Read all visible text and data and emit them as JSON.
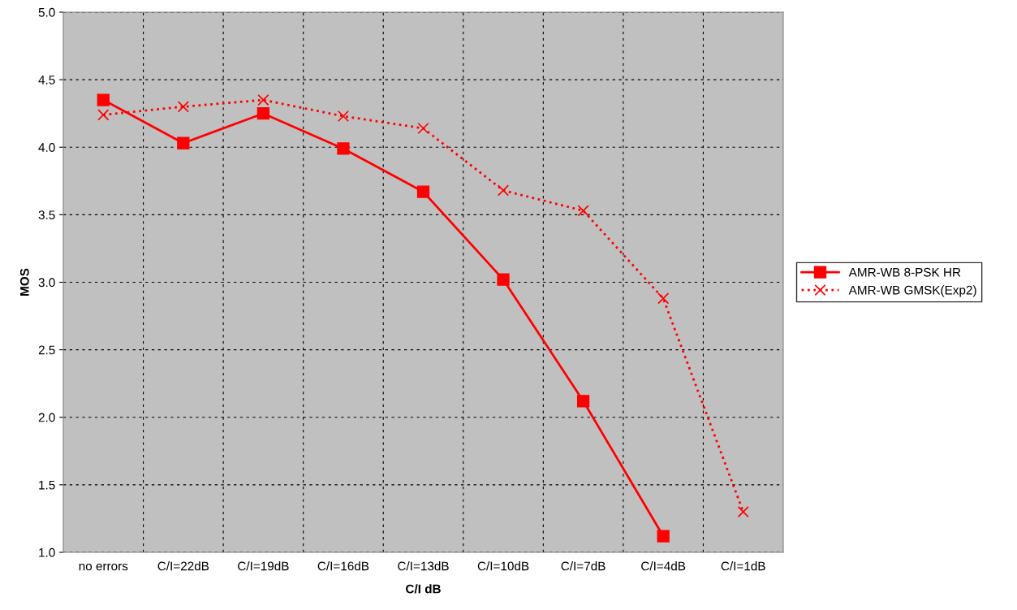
{
  "chart_data": {
    "type": "line",
    "xlabel": "C/I dB",
    "ylabel": "MOS",
    "categories": [
      "no errors",
      "C/I=22dB",
      "C/I=19dB",
      "C/I=16dB",
      "C/I=13dB",
      "C/I=10dB",
      "C/I=7dB",
      "C/I=4dB",
      "C/I=1dB"
    ],
    "series": [
      {
        "name": "AMR-WB 8-PSK HR",
        "color": "#ff0000",
        "marker": "square",
        "line_style": "solid",
        "values": [
          4.35,
          4.03,
          4.25,
          3.99,
          3.67,
          3.02,
          2.12,
          1.12,
          null
        ]
      },
      {
        "name": "AMR-WB GMSK(Exp2)",
        "color": "#ff0000",
        "marker": "cross",
        "line_style": "dotted",
        "values": [
          4.24,
          4.3,
          4.35,
          4.23,
          4.14,
          3.68,
          3.53,
          2.88,
          1.3
        ]
      }
    ],
    "ylim": [
      1.0,
      5.0
    ],
    "yticks": [
      {
        "value": 1.0,
        "label": "1.0"
      },
      {
        "value": 1.5,
        "label": "1.5"
      },
      {
        "value": 2.0,
        "label": "2.0"
      },
      {
        "value": 2.5,
        "label": "2.5"
      },
      {
        "value": 3.0,
        "label": "3.0"
      },
      {
        "value": 3.5,
        "label": "3.5"
      },
      {
        "value": 4.0,
        "label": "4.0"
      },
      {
        "value": 4.5,
        "label": "4.5"
      },
      {
        "value": 5.0,
        "label": "5.0"
      }
    ],
    "grid": true,
    "legend": "right"
  }
}
